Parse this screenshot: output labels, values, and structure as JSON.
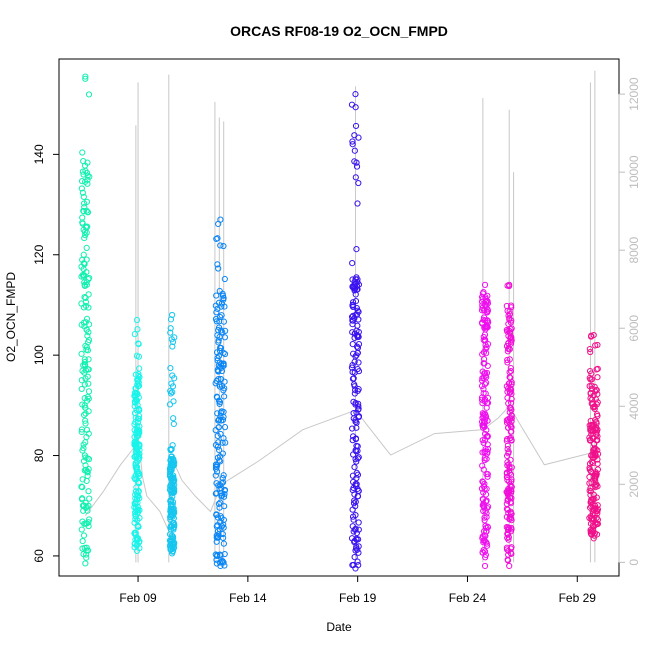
{
  "chart_data": {
    "type": "scatter",
    "title": "ORCAS RF08-19 O2_OCN_FMPD",
    "xlabel": "Date",
    "ylabel": "O2_OCN_FMPD",
    "x_ticks": [
      "Feb 09",
      "Feb 14",
      "Feb 19",
      "Feb 24",
      "Feb 29"
    ],
    "x_tick_days": [
      9,
      14,
      19,
      24,
      29
    ],
    "xlim_days": [
      5.4,
      30.9
    ],
    "ylim": [
      56,
      159
    ],
    "y_ticks": [
      60,
      80,
      100,
      120,
      140
    ],
    "y2_ticks": [
      0,
      2000,
      4000,
      6000,
      8000,
      10000,
      12000
    ],
    "y2lim": [
      -350,
      12900
    ],
    "y2_color": "#bdbdbd",
    "y2_series": {
      "color": "#c8c8c8",
      "description": "altitude trace (right axis)",
      "segments": [
        {
          "x": [
            6.6,
            7.0,
            7.4,
            8.2,
            8.9,
            9.0
          ],
          "y": [
            1200,
            1500,
            1800,
            2500,
            3000,
            3300
          ]
        },
        {
          "x": [
            9.0,
            9.2,
            9.4,
            10.0,
            10.4,
            10.6
          ],
          "y": [
            3300,
            2200,
            1700,
            1300,
            800,
            2600
          ]
        },
        {
          "x": [
            10.6,
            11.0,
            11.6,
            12.3,
            12.8
          ],
          "y": [
            2600,
            2100,
            1700,
            1300,
            2000
          ]
        },
        {
          "x": [
            12.8,
            14.5,
            16.5,
            18.9
          ],
          "y": [
            2000,
            2600,
            3400,
            3900
          ]
        },
        {
          "x": [
            18.9,
            20.5,
            22.5,
            24.7
          ],
          "y": [
            3900,
            2750,
            3300,
            3400
          ]
        },
        {
          "x": [
            24.7,
            25.4,
            25.9
          ],
          "y": [
            3400,
            3700,
            4000
          ]
        },
        {
          "x": [
            25.9,
            27.5,
            29.6
          ],
          "y": [
            4000,
            2500,
            2800
          ]
        }
      ],
      "spikes": [
        {
          "x": 8.9,
          "top": 11200
        },
        {
          "x": 9.0,
          "top": 12300
        },
        {
          "x": 10.4,
          "top": 12500
        },
        {
          "x": 12.5,
          "top": 11800
        },
        {
          "x": 12.7,
          "top": 11400
        },
        {
          "x": 12.9,
          "top": 11300
        },
        {
          "x": 18.9,
          "top": 12200
        },
        {
          "x": 24.7,
          "top": 11900
        },
        {
          "x": 25.9,
          "top": 11600
        },
        {
          "x": 26.1,
          "top": 10000
        },
        {
          "x": 29.6,
          "top": 12300
        },
        {
          "x": 29.8,
          "top": 12600
        }
      ]
    },
    "series": [
      {
        "color": "#12f0b0",
        "x_center": 6.6,
        "x_spread": 0.18,
        "ymin": 58.5,
        "ymax": 155.5,
        "dense_min": 59,
        "dense_max": 140
      },
      {
        "color": "#18f4ea",
        "x_center": 8.95,
        "x_spread": 0.12,
        "ymin": 61,
        "ymax": 107,
        "dense_min": 62,
        "dense_max": 96
      },
      {
        "color": "#16c6ef",
        "x_center": 10.55,
        "x_spread": 0.1,
        "ymin": 60.5,
        "ymax": 108,
        "dense_min": 61,
        "dense_max": 80
      },
      {
        "color": "#0a86f5",
        "x_center": 12.75,
        "x_spread": 0.22,
        "ymin": 58,
        "ymax": 127,
        "dense_min": 58,
        "dense_max": 113
      },
      {
        "color": "#3a12f0",
        "x_center": 18.9,
        "x_spread": 0.16,
        "ymin": 57.5,
        "ymax": 152,
        "dense_min": 58,
        "dense_max": 116
      },
      {
        "color": "#ee10ee",
        "x_center": 24.8,
        "x_spread": 0.14,
        "ymin": 58,
        "ymax": 114,
        "dense_min": 60,
        "dense_max": 113
      },
      {
        "color": "#f010d8",
        "x_center": 25.9,
        "x_spread": 0.12,
        "ymin": 58,
        "ymax": 114,
        "dense_min": 59,
        "dense_max": 110
      },
      {
        "color": "#f0108a",
        "x_center": 29.75,
        "x_spread": 0.2,
        "ymin": 63.5,
        "ymax": 104,
        "dense_min": 64,
        "dense_max": 96
      }
    ]
  }
}
